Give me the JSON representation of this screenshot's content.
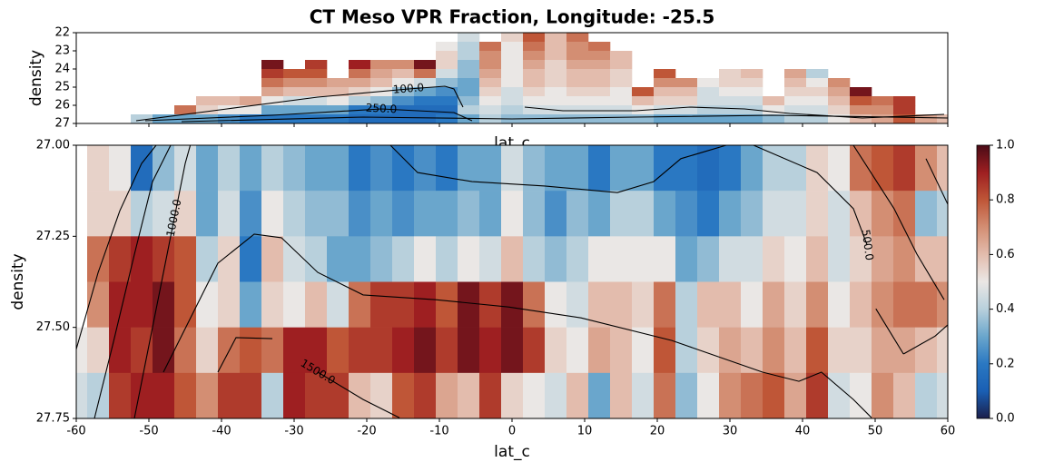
{
  "chart_data": [
    {
      "type": "heatmap",
      "title": "CT Meso VPR Fraction, Longitude: -25.5",
      "xlabel": "lat_c",
      "ylabel": "density",
      "xlim": [
        -60,
        60
      ],
      "ylim": [
        27,
        22
      ],
      "yticks": [
        22,
        23,
        24,
        25,
        26,
        27
      ],
      "xbins": [
        -61.5,
        -58.5,
        -55.5,
        -52.5,
        -49.5,
        -46.5,
        -43.5,
        -40.5,
        -37.5,
        -34.5,
        -31.5,
        -28.5,
        -25.5,
        -22.5,
        -19.5,
        -16.5,
        -13.5,
        -10.5,
        -7.5,
        -4.5,
        -1.5,
        1.5,
        4.5,
        7.5,
        10.5,
        13.5,
        16.5,
        19.5,
        22.5,
        25.5,
        28.5,
        31.5,
        34.5,
        37.5,
        40.5,
        43.5,
        46.5,
        49.5,
        52.5,
        55.5,
        58.5,
        61.5
      ],
      "ybins": [
        22,
        22.5,
        23,
        23.5,
        24,
        24.5,
        25,
        25.5,
        26,
        26.5,
        27
      ],
      "values": [
        [
          null,
          null,
          null,
          null,
          null,
          null,
          null,
          null,
          null,
          null
        ],
        [
          null,
          null,
          null,
          null,
          null,
          null,
          null,
          null,
          null,
          null
        ],
        [
          null,
          null,
          null,
          null,
          null,
          null,
          null,
          null,
          null,
          null
        ],
        [
          null,
          null,
          null,
          null,
          null,
          null,
          null,
          null,
          null,
          0.4
        ],
        [
          null,
          null,
          null,
          null,
          null,
          null,
          null,
          null,
          null,
          0.3
        ],
        [
          null,
          null,
          null,
          null,
          null,
          null,
          null,
          null,
          0.75,
          0.3
        ],
        [
          null,
          null,
          null,
          null,
          null,
          null,
          null,
          0.6,
          0.55,
          0.3
        ],
        [
          null,
          null,
          null,
          null,
          null,
          null,
          null,
          0.6,
          0.5,
          0.25
        ],
        [
          null,
          null,
          null,
          null,
          null,
          null,
          null,
          0.65,
          0.5,
          0.2
        ],
        [
          null,
          null,
          null,
          0.95,
          0.85,
          0.75,
          0.65,
          0.5,
          0.3,
          0.2
        ],
        [
          null,
          null,
          null,
          null,
          0.8,
          0.7,
          0.6,
          0.45,
          0.3,
          0.2
        ],
        [
          null,
          null,
          null,
          0.85,
          0.8,
          0.7,
          0.6,
          0.45,
          0.3,
          0.2
        ],
        [
          null,
          null,
          null,
          null,
          null,
          0.65,
          0.6,
          0.5,
          0.3,
          0.2
        ],
        [
          null,
          null,
          null,
          0.9,
          0.75,
          0.65,
          0.55,
          0.4,
          0.2,
          0.15
        ],
        [
          null,
          null,
          null,
          0.7,
          0.65,
          0.6,
          0.5,
          0.35,
          0.2,
          0.15
        ],
        [
          null,
          null,
          null,
          0.7,
          0.6,
          0.5,
          0.35,
          0.25,
          0.15,
          0.15
        ],
        [
          null,
          null,
          null,
          0.95,
          0.75,
          0.45,
          0.3,
          0.2,
          0.15,
          0.15
        ],
        [
          null,
          0.5,
          0.55,
          0.55,
          0.45,
          0.35,
          0.25,
          0.2,
          0.15,
          0.2
        ],
        [
          0.45,
          0.4,
          0.4,
          0.35,
          0.35,
          0.3,
          0.3,
          0.35,
          0.4,
          0.3
        ],
        [
          null,
          0.75,
          0.7,
          0.7,
          0.65,
          0.6,
          0.55,
          0.5,
          0.45,
          0.4
        ],
        [
          0.55,
          0.5,
          0.5,
          0.5,
          0.5,
          0.5,
          0.45,
          0.45,
          0.4,
          0.35
        ],
        [
          0.8,
          0.75,
          0.7,
          0.65,
          0.6,
          0.6,
          0.55,
          0.5,
          0.45,
          0.35
        ],
        [
          0.6,
          0.6,
          0.6,
          0.55,
          0.55,
          0.55,
          0.5,
          0.5,
          0.45,
          0.35
        ],
        [
          0.75,
          0.7,
          0.7,
          0.65,
          0.6,
          0.6,
          0.55,
          0.5,
          0.45,
          0.35
        ],
        [
          null,
          0.75,
          0.7,
          0.65,
          0.6,
          0.6,
          0.55,
          0.5,
          0.45,
          0.35
        ],
        [
          null,
          null,
          0.6,
          0.6,
          0.55,
          0.55,
          0.5,
          0.5,
          0.45,
          0.35
        ],
        [
          null,
          null,
          null,
          null,
          null,
          null,
          0.8,
          0.6,
          0.5,
          0.35
        ],
        [
          null,
          null,
          null,
          null,
          0.8,
          0.7,
          0.6,
          0.55,
          0.45,
          0.3
        ],
        [
          null,
          null,
          null,
          null,
          null,
          0.7,
          0.6,
          0.55,
          0.45,
          0.3
        ],
        [
          null,
          null,
          null,
          null,
          null,
          0.5,
          0.45,
          0.45,
          0.4,
          0.3
        ],
        [
          null,
          null,
          null,
          null,
          0.55,
          0.55,
          0.5,
          0.45,
          0.4,
          0.3
        ],
        [
          null,
          null,
          null,
          null,
          0.6,
          0.55,
          0.5,
          0.45,
          0.4,
          0.3
        ],
        [
          null,
          null,
          null,
          null,
          null,
          null,
          null,
          0.6,
          0.5,
          0.35
        ],
        [
          null,
          null,
          null,
          null,
          0.65,
          0.6,
          0.55,
          0.5,
          0.45,
          0.4
        ],
        [
          null,
          null,
          null,
          null,
          0.4,
          0.5,
          0.55,
          0.5,
          0.45,
          0.4
        ],
        [
          null,
          null,
          null,
          null,
          null,
          0.7,
          0.65,
          0.6,
          0.55,
          0.5
        ],
        [
          null,
          null,
          null,
          null,
          null,
          null,
          0.95,
          0.8,
          0.7,
          0.6
        ],
        [
          null,
          null,
          null,
          null,
          null,
          null,
          null,
          0.75,
          0.7,
          0.65
        ],
        [
          null,
          null,
          null,
          null,
          null,
          null,
          null,
          0.85,
          0.85,
          0.8
        ],
        [
          null,
          null,
          null,
          null,
          null,
          null,
          null,
          null,
          null,
          0.65
        ],
        [
          null,
          null,
          null,
          null,
          null,
          null,
          null,
          null,
          null,
          0.6
        ]
      ],
      "contours": [
        {
          "x": [
            -51.75,
            -39.25,
            -26.75,
            -14.25,
            -9.25,
            -8,
            -6.75
          ],
          "y": [
            26.85,
            26.2,
            25.55,
            25.1,
            24.95,
            25.1,
            26.1
          ],
          "label": "100.0"
        },
        {
          "x": [
            -50.5,
            -33,
            -18,
            -8,
            -5.5
          ],
          "y": [
            26.85,
            26.55,
            26.2,
            26.4,
            26.85
          ],
          "label": "250.0"
        },
        {
          "x": [
            1.75,
            7,
            17,
            24.5,
            32,
            38.25,
            48.25,
            59.5
          ],
          "y": [
            26.1,
            26.3,
            26.3,
            26.1,
            26.2,
            26.45,
            26.7,
            26.5
          ]
        },
        {
          "x": [
            -45.5,
            -20.5,
            0,
            17,
            35.75,
            60
          ],
          "y": [
            26.9,
            26.65,
            26.75,
            26.65,
            26.55,
            26.7
          ]
        }
      ]
    },
    {
      "type": "heatmap",
      "xlabel": "lat_c",
      "ylabel": "density",
      "xlim": [
        -60,
        60
      ],
      "xticks": [
        -60,
        -50,
        -40,
        -30,
        -20,
        -10,
        0,
        10,
        20,
        30,
        40,
        50,
        60
      ],
      "ylim": [
        27.75,
        27
      ],
      "yticks": [
        {
          "value": 27,
          "label": "27.00"
        },
        27.25,
        {
          "value": 27.5,
          "label": "27.50"
        },
        27.75
      ],
      "xbins": [
        -61.5,
        -58.5,
        -55.5,
        -52.5,
        -49.5,
        -46.5,
        -43.5,
        -40.5,
        -37.5,
        -34.5,
        -31.5,
        -28.5,
        -25.5,
        -22.5,
        -19.5,
        -16.5,
        -13.5,
        -10.5,
        -7.5,
        -4.5,
        -1.5,
        1.5,
        4.5,
        7.5,
        10.5,
        13.5,
        16.5,
        19.5,
        22.5,
        25.5,
        28.5,
        31.5,
        34.5,
        37.5,
        40.5,
        43.5,
        46.5,
        49.5,
        52.5,
        55.5,
        58.5,
        61.5
      ],
      "ybins": [
        27,
        27.125,
        27.25,
        27.375,
        27.5,
        27.625,
        27.75
      ],
      "values": [
        [
          null,
          null,
          null,
          null,
          0.5,
          0.45
        ],
        [
          0.55,
          0.55,
          0.75,
          0.7,
          0.55,
          0.4
        ],
        [
          0.5,
          0.55,
          0.85,
          0.9,
          0.9,
          0.85
        ],
        [
          0.15,
          0.4,
          0.9,
          0.9,
          0.85,
          0.9
        ],
        [
          0.35,
          0.45,
          0.85,
          0.95,
          0.95,
          0.9
        ],
        [
          0.45,
          0.55,
          0.8,
          0.8,
          0.75,
          0.8
        ],
        [
          0.3,
          0.3,
          0.4,
          0.5,
          0.55,
          0.7
        ],
        [
          0.4,
          0.45,
          0.55,
          0.55,
          0.75,
          0.85
        ],
        [
          0.3,
          0.25,
          0.2,
          0.3,
          0.8,
          0.85
        ],
        [
          0.4,
          0.5,
          0.6,
          0.55,
          0.75,
          0.4
        ],
        [
          0.35,
          0.4,
          0.45,
          0.5,
          0.9,
          0.9
        ],
        [
          0.3,
          0.35,
          0.4,
          0.6,
          0.9,
          0.85
        ],
        [
          0.3,
          0.35,
          0.3,
          0.45,
          0.8,
          0.85
        ],
        [
          0.2,
          0.25,
          0.3,
          0.75,
          0.85,
          0.6
        ],
        [
          0.25,
          0.3,
          0.35,
          0.85,
          0.85,
          0.55
        ],
        [
          0.2,
          0.25,
          0.4,
          0.85,
          0.9,
          0.8
        ],
        [
          0.25,
          0.3,
          0.5,
          0.9,
          0.95,
          0.85
        ],
        [
          0.2,
          0.3,
          0.4,
          0.8,
          0.85,
          0.65
        ],
        [
          0.3,
          0.35,
          0.5,
          0.95,
          0.95,
          0.6
        ],
        [
          0.3,
          0.3,
          0.45,
          0.85,
          0.9,
          0.85
        ],
        [
          0.45,
          0.5,
          0.6,
          0.95,
          0.95,
          0.55
        ],
        [
          0.35,
          0.35,
          0.4,
          0.75,
          0.85,
          0.5
        ],
        [
          0.3,
          0.25,
          0.35,
          0.5,
          0.55,
          0.45
        ],
        [
          0.3,
          0.35,
          0.4,
          0.45,
          0.5,
          0.6
        ],
        [
          0.2,
          0.3,
          0.5,
          0.6,
          0.65,
          0.3
        ],
        [
          0.3,
          0.4,
          0.5,
          0.6,
          0.6,
          0.6
        ],
        [
          0.3,
          0.4,
          0.5,
          0.55,
          0.5,
          0.45
        ],
        [
          0.2,
          0.3,
          0.5,
          0.75,
          0.8,
          0.75
        ],
        [
          0.2,
          0.25,
          0.3,
          0.4,
          0.4,
          0.35
        ],
        [
          0.15,
          0.2,
          0.35,
          0.6,
          0.55,
          0.5
        ],
        [
          0.2,
          0.3,
          0.45,
          0.6,
          0.65,
          0.7
        ],
        [
          0.3,
          0.35,
          0.45,
          0.5,
          0.6,
          0.75
        ],
        [
          0.4,
          0.45,
          0.55,
          0.65,
          0.7,
          0.8
        ],
        [
          0.4,
          0.45,
          0.5,
          0.55,
          0.6,
          0.65
        ],
        [
          0.55,
          0.55,
          0.6,
          0.7,
          0.8,
          0.85
        ],
        [
          0.5,
          0.45,
          0.45,
          0.5,
          0.55,
          0.45
        ],
        [
          0.75,
          0.6,
          0.55,
          0.6,
          0.55,
          0.5
        ],
        [
          0.8,
          0.7,
          0.65,
          0.7,
          0.65,
          0.7
        ],
        [
          0.85,
          0.75,
          0.7,
          0.75,
          0.65,
          0.6
        ],
        [
          0.7,
          0.35,
          0.6,
          0.75,
          0.6,
          0.4
        ],
        [
          0.6,
          0.4,
          0.6,
          0.7,
          0.55,
          0.45
        ]
      ],
      "contours": [
        {
          "x": [
            -60,
            -57,
            -54,
            -51,
            -49
          ],
          "y": [
            27.56,
            27.35,
            27.18,
            27.05,
            27.0
          ]
        },
        {
          "x": [
            -57.5,
            -55,
            -52,
            -49.5,
            -47
          ],
          "y": [
            27.75,
            27.55,
            27.3,
            27.1,
            27.0
          ]
        },
        {
          "x": [
            -52,
            -50,
            -48,
            -46.5,
            -45,
            -44.3
          ],
          "y": [
            27.75,
            27.55,
            27.35,
            27.2,
            27.05,
            27.0
          ],
          "label": "1000.0"
        },
        {
          "x": [
            -48,
            -40.5,
            -35.5,
            -31.75,
            -26.75,
            -20.5,
            -10.5,
            -0.5,
            9.5,
            22,
            34.5,
            39.5,
            42.6,
            47,
            49.5
          ],
          "y": [
            27.623,
            27.324,
            27.244,
            27.254,
            27.349,
            27.411,
            27.424,
            27.444,
            27.474,
            27.536,
            27.623,
            27.648,
            27.623,
            27.698,
            27.748
          ]
        },
        {
          "x": [
            -40.5,
            -38,
            -33,
            null,
            -26.75,
            -20.5,
            -15.5
          ],
          "y": [
            27.623,
            27.528,
            27.531,
            null,
            27.623,
            27.698,
            27.748
          ],
          "label": "1500.0"
        },
        {
          "x": [
            -16.75,
            -13,
            -5.5,
            4.5,
            14.5,
            19.5,
            23.25,
            29.5
          ],
          "y": [
            27.0,
            27.075,
            27.1,
            27.112,
            27.13,
            27.1,
            27.037,
            27.0
          ]
        },
        {
          "x": [
            33.25,
            42,
            47,
            48.9,
            null,
            50.1,
            53.9
          ],
          "y": [
            27.0,
            27.075,
            27.174,
            27.274,
            null,
            27.449,
            27.573
          ],
          "label": "500.0"
        },
        {
          "x": [
            47,
            52.6,
            55.75,
            59.5
          ],
          "y": [
            27.0,
            27.174,
            27.299,
            27.424
          ]
        },
        {
          "x": [
            53.9,
            58.25,
            60
          ],
          "y": [
            27.573,
            27.524,
            27.493
          ]
        },
        {
          "x": [
            57,
            60
          ],
          "y": [
            27.037,
            27.162
          ]
        }
      ],
      "colorbar": {
        "ylim": [
          0,
          1
        ],
        "yticks": [
          {
            "value": 0,
            "label": "0.0"
          },
          0.2,
          0.4,
          0.6,
          0.8,
          {
            "value": 1,
            "label": "1.0"
          }
        ],
        "colormap": [
          "#1b1f4b",
          "#1a5fb4",
          "#2a78c2",
          "#6aa6cc",
          "#b8d0dc",
          "#eae7e5",
          "#e3bcad",
          "#d38e73",
          "#bf5637",
          "#9e1f21",
          "#4a0b17"
        ]
      }
    }
  ]
}
